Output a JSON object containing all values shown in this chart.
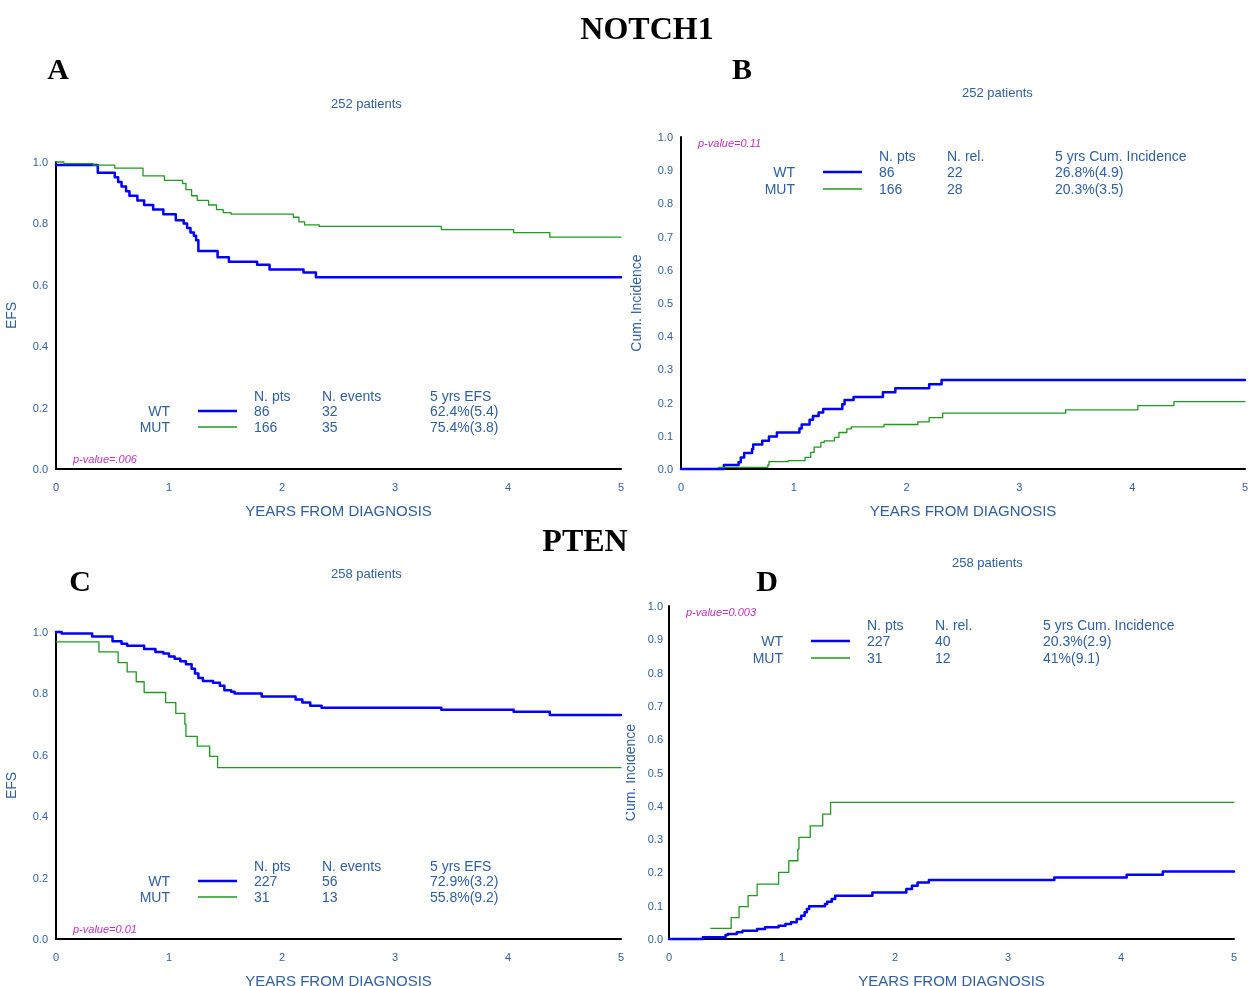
{
  "chart_data": [
    {
      "type": "step",
      "title": "NOTCH1",
      "subtitle": "252 patients",
      "xlabel": "YEARS FROM DIAGNOSIS",
      "ylabel": "EFS",
      "annotations": [
        "A",
        "p-value=.006",
        "N. pts",
        "N. events",
        "5 yrs EFS",
        "86",
        "32",
        "62.4%(5.4)",
        "166",
        "35",
        "75.4%(3.8)"
      ],
      "xlim": [
        0,
        5
      ],
      "xticks": [
        0,
        1,
        2,
        3,
        4,
        5
      ],
      "ylim": [
        0,
        1
      ],
      "yticks": [
        {
          "value": 0,
          "label": "0.0"
        },
        {
          "value": 0.2,
          "label": "0.2"
        },
        {
          "value": 0.4,
          "label": "0.4"
        },
        {
          "value": 0.6,
          "label": "0.6"
        },
        {
          "value": 0.8,
          "label": "0.8"
        },
        {
          "value": 1,
          "label": "1.0"
        }
      ],
      "grid": false,
      "legend": "bottom",
      "marker": "none",
      "series": [
        {
          "name": "WT",
          "color": "#0000ff",
          "x": [
            0,
            0.37,
            0.52,
            0.55,
            0.58,
            0.62,
            0.65,
            0.72,
            0.78,
            0.86,
            0.95,
            1.06,
            1.13,
            1.16,
            1.19,
            1.22,
            1.24,
            1.26,
            1.43,
            1.53,
            1.78,
            1.89,
            2.19,
            2.3,
            5
          ],
          "values": [
            0.99,
            0.965,
            0.95,
            0.935,
            0.92,
            0.905,
            0.89,
            0.875,
            0.86,
            0.845,
            0.83,
            0.81,
            0.8,
            0.785,
            0.77,
            0.76,
            0.745,
            0.71,
            0.69,
            0.675,
            0.665,
            0.65,
            0.64,
            0.625,
            0.625
          ]
        },
        {
          "name": "MUT",
          "color": "#1f9a1f",
          "x": [
            0,
            0.07,
            0.33,
            0.52,
            0.77,
            0.96,
            1.12,
            1.15,
            1.2,
            1.25,
            1.35,
            1.42,
            1.48,
            1.55,
            2.1,
            2.15,
            2.2,
            2.33,
            3.41,
            4.05,
            4.37,
            5
          ],
          "values": [
            1.0,
            0.995,
            0.99,
            0.98,
            0.955,
            0.94,
            0.93,
            0.91,
            0.89,
            0.875,
            0.86,
            0.845,
            0.835,
            0.83,
            0.82,
            0.805,
            0.795,
            0.79,
            0.78,
            0.77,
            0.755,
            0.755
          ]
        }
      ]
    },
    {
      "type": "step",
      "subtitle": "252 patients",
      "xlabel": "YEARS FROM DIAGNOSIS",
      "ylabel": "Cum. Incidence",
      "annotations": [
        "B",
        "p-value=0.11",
        "N. pts",
        "N. rel.",
        "5 yrs Cum. Incidence",
        "86",
        "22",
        "26.8%(4.9)",
        "166",
        "28",
        "20.3%(3.5)"
      ],
      "xlim": [
        0,
        5
      ],
      "xticks": [
        0,
        1,
        2,
        3,
        4,
        5
      ],
      "ylim": [
        0,
        1
      ],
      "yticks": [
        {
          "value": 0,
          "label": "0.0"
        },
        {
          "value": 0.1,
          "label": "0.1"
        },
        {
          "value": 0.2,
          "label": "0.2"
        },
        {
          "value": 0.3,
          "label": "0.3"
        },
        {
          "value": 0.4,
          "label": "0.4"
        },
        {
          "value": 0.5,
          "label": "0.5"
        },
        {
          "value": 0.6,
          "label": "0.6"
        },
        {
          "value": 0.7,
          "label": "0.7"
        },
        {
          "value": 0.8,
          "label": "0.8"
        },
        {
          "value": 0.9,
          "label": "0.9"
        },
        {
          "value": 1,
          "label": "1.0"
        }
      ],
      "grid": false,
      "legend": "top",
      "marker": "none",
      "series": [
        {
          "name": "WT",
          "color": "#0000ff",
          "x": [
            0,
            0.38,
            0.51,
            0.53,
            0.56,
            0.63,
            0.64,
            0.72,
            0.78,
            0.85,
            1.05,
            1.07,
            1.14,
            1.17,
            1.22,
            1.26,
            1.43,
            1.45,
            1.53,
            1.79,
            1.9,
            2.2,
            2.31,
            5
          ],
          "values": [
            0,
            0.012,
            0.02,
            0.035,
            0.048,
            0.06,
            0.074,
            0.085,
            0.098,
            0.11,
            0.122,
            0.134,
            0.148,
            0.16,
            0.17,
            0.181,
            0.195,
            0.208,
            0.217,
            0.231,
            0.243,
            0.255,
            0.268,
            0.268
          ]
        },
        {
          "name": "MUT",
          "color": "#1f9a1f",
          "x": [
            0.33,
            0.77,
            0.78,
            0.95,
            1.1,
            1.15,
            1.18,
            1.24,
            1.27,
            1.36,
            1.4,
            1.47,
            1.51,
            1.8,
            2.1,
            2.2,
            2.32,
            3.41,
            4.05,
            4.37,
            5
          ],
          "values": [
            0.005,
            0.012,
            0.022,
            0.025,
            0.035,
            0.05,
            0.066,
            0.08,
            0.085,
            0.095,
            0.11,
            0.121,
            0.127,
            0.134,
            0.142,
            0.155,
            0.168,
            0.178,
            0.191,
            0.203,
            0.203
          ]
        }
      ]
    },
    {
      "type": "step",
      "title": "PTEN",
      "subtitle": "258 patients",
      "xlabel": "YEARS FROM DIAGNOSIS",
      "ylabel": "EFS",
      "annotations": [
        "C",
        "p-value=0.01",
        "N. pts",
        "N. events",
        "5 yrs EFS",
        "227",
        "56",
        "72.9%(3.2)",
        "31",
        "13",
        "55.8%(9.2)"
      ],
      "xlim": [
        0,
        5
      ],
      "xticks": [
        0,
        1,
        2,
        3,
        4,
        5
      ],
      "ylim": [
        0,
        1
      ],
      "yticks": [
        {
          "value": 0,
          "label": "0.0"
        },
        {
          "value": 0.2,
          "label": "0.2"
        },
        {
          "value": 0.4,
          "label": "0.4"
        },
        {
          "value": 0.6,
          "label": "0.6"
        },
        {
          "value": 0.8,
          "label": "0.8"
        },
        {
          "value": 1,
          "label": "1.0"
        }
      ],
      "grid": false,
      "legend": "bottom",
      "marker": "none",
      "series": [
        {
          "name": "WT",
          "color": "#0000ff",
          "x": [
            0,
            0.05,
            0.32,
            0.5,
            0.58,
            0.63,
            0.78,
            0.88,
            0.95,
            1.0,
            1.05,
            1.1,
            1.15,
            1.2,
            1.23,
            1.26,
            1.3,
            1.39,
            1.45,
            1.49,
            1.55,
            1.58,
            1.82,
            2.12,
            2.18,
            2.25,
            2.35,
            3.41,
            4.05,
            4.37,
            5
          ],
          "values": [
            1.0,
            0.995,
            0.985,
            0.97,
            0.962,
            0.955,
            0.945,
            0.935,
            0.93,
            0.92,
            0.913,
            0.905,
            0.895,
            0.88,
            0.865,
            0.85,
            0.84,
            0.835,
            0.825,
            0.81,
            0.805,
            0.8,
            0.79,
            0.78,
            0.77,
            0.76,
            0.753,
            0.747,
            0.74,
            0.73,
            0.73
          ]
        },
        {
          "name": "MUT",
          "color": "#1f9a1f",
          "x": [
            0,
            0.38,
            0.55,
            0.63,
            0.71,
            0.78,
            0.97,
            1.06,
            1.14,
            1.15,
            1.25,
            1.36,
            1.43,
            5
          ],
          "values": [
            0.968,
            0.935,
            0.9,
            0.87,
            0.838,
            0.803,
            0.77,
            0.735,
            0.7,
            0.66,
            0.628,
            0.595,
            0.558,
            0.558
          ]
        }
      ]
    },
    {
      "type": "step",
      "subtitle": "258 patients",
      "xlabel": "YEARS FROM DIAGNOSIS",
      "ylabel": "Cum. Incidence",
      "annotations": [
        "D",
        "p-value=0.003",
        "N. pts",
        "N. rel.",
        "5 yrs Cum. Incidence",
        "227",
        "40",
        "20.3%(2.9)",
        "31",
        "12",
        "41%(9.1)"
      ],
      "xlim": [
        0,
        5
      ],
      "xticks": [
        0,
        1,
        2,
        3,
        4,
        5
      ],
      "ylim": [
        0,
        1
      ],
      "yticks": [
        {
          "value": 0,
          "label": "0.0"
        },
        {
          "value": 0.1,
          "label": "0.1"
        },
        {
          "value": 0.2,
          "label": "0.2"
        },
        {
          "value": 0.3,
          "label": "0.3"
        },
        {
          "value": 0.4,
          "label": "0.4"
        },
        {
          "value": 0.5,
          "label": "0.5"
        },
        {
          "value": 0.6,
          "label": "0.6"
        },
        {
          "value": 0.7,
          "label": "0.7"
        },
        {
          "value": 0.8,
          "label": "0.8"
        },
        {
          "value": 0.9,
          "label": "0.9"
        },
        {
          "value": 1,
          "label": "1.0"
        }
      ],
      "grid": false,
      "legend": "top",
      "marker": "none",
      "series": [
        {
          "name": "WT",
          "color": "#0000ff",
          "x": [
            0,
            0.3,
            0.5,
            0.52,
            0.6,
            0.65,
            0.78,
            0.85,
            0.97,
            1.03,
            1.08,
            1.13,
            1.17,
            1.2,
            1.22,
            1.24,
            1.38,
            1.4,
            1.44,
            1.47,
            1.8,
            2.1,
            2.15,
            2.2,
            2.3,
            3.41,
            4.05,
            4.37,
            5
          ],
          "values": [
            0,
            0.005,
            0.012,
            0.015,
            0.02,
            0.025,
            0.03,
            0.035,
            0.04,
            0.045,
            0.05,
            0.06,
            0.07,
            0.08,
            0.09,
            0.098,
            0.105,
            0.112,
            0.12,
            0.13,
            0.14,
            0.15,
            0.16,
            0.17,
            0.177,
            0.185,
            0.193,
            0.203,
            0.203
          ]
        },
        {
          "name": "MUT",
          "color": "#1f9a1f",
          "x": [
            0.37,
            0.55,
            0.62,
            0.7,
            0.78,
            0.97,
            1.06,
            1.14,
            1.15,
            1.25,
            1.36,
            1.43,
            5
          ],
          "values": [
            0.032,
            0.064,
            0.097,
            0.13,
            0.165,
            0.2,
            0.235,
            0.27,
            0.305,
            0.34,
            0.375,
            0.41,
            0.41
          ]
        }
      ]
    }
  ]
}
